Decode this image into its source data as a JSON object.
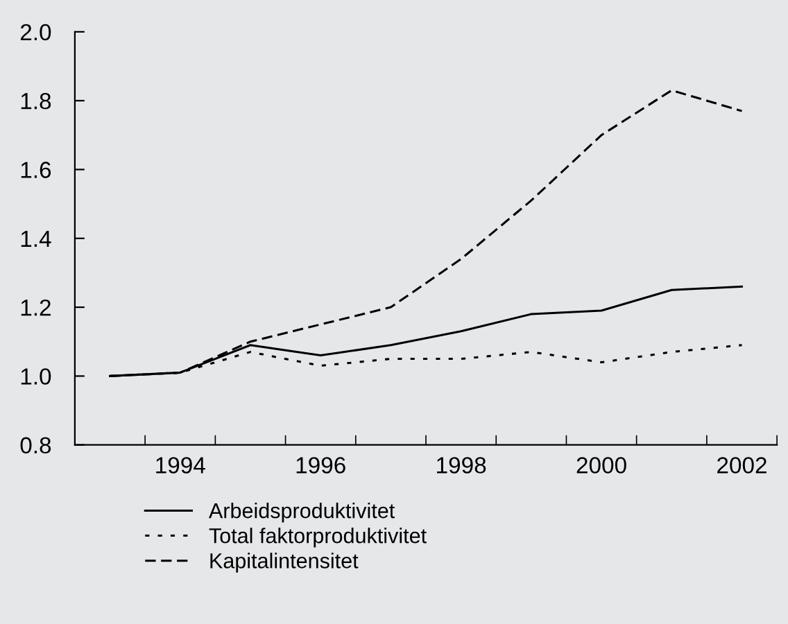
{
  "chart_data": {
    "type": "line",
    "categories": [
      null,
      "1994",
      null,
      "1996",
      null,
      "1998",
      null,
      "2000",
      null,
      "2002"
    ],
    "series": [
      {
        "name": "Arbeidsproduktivitet",
        "color": "#000000",
        "line_style": "solid",
        "values": [
          1.0,
          1.01,
          1.09,
          1.06,
          1.09,
          1.13,
          1.18,
          1.19,
          1.25,
          1.26
        ]
      },
      {
        "name": "Total faktorproduktivitet",
        "color": "#000000",
        "line_style": "dotted",
        "values": [
          1.0,
          1.01,
          1.07,
          1.03,
          1.05,
          1.05,
          1.07,
          1.04,
          1.07,
          1.09
        ]
      },
      {
        "name": "Kapitalintensitet",
        "color": "#000000",
        "line_style": "dashed",
        "values": [
          1.0,
          1.01,
          1.1,
          1.15,
          1.2,
          1.34,
          1.51,
          1.7,
          1.83,
          1.77
        ]
      }
    ],
    "ylim": [
      0.8,
      2.0
    ],
    "yticks": [
      {
        "value": 0.8,
        "label": "0.8"
      },
      {
        "value": 1.0,
        "label": "1.0"
      },
      {
        "value": 1.2,
        "label": "1.2"
      },
      {
        "value": 1.4,
        "label": "1.4"
      },
      {
        "value": 1.6,
        "label": "1.6"
      },
      {
        "value": 1.8,
        "label": "1.8"
      },
      {
        "value": 2.0,
        "label": "2.0"
      }
    ],
    "grid": false,
    "legend": "bottom",
    "marker": "none"
  }
}
